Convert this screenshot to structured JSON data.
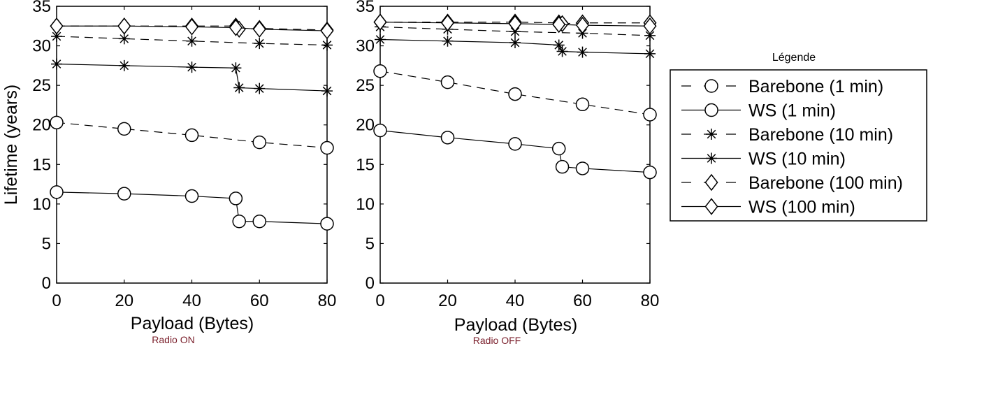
{
  "chart_data": [
    {
      "type": "line",
      "xlabel": "Payload (Bytes)",
      "ylabel": "Lifetime (years)",
      "caption": "Radio ON",
      "xlim": [
        0,
        80
      ],
      "ylim": [
        0,
        35
      ],
      "xticks": [
        "0",
        "20",
        "40",
        "60",
        "80"
      ],
      "yticks": [
        "0",
        "5",
        "10",
        "15",
        "20",
        "25",
        "30",
        "35"
      ],
      "grid": false,
      "series": [
        {
          "name": "Barebone (1 min)",
          "style": "dashed",
          "marker": "circle",
          "x": [
            0,
            20,
            40,
            60,
            80
          ],
          "y": [
            20.3,
            19.5,
            18.7,
            17.8,
            17.1
          ]
        },
        {
          "name": "WS (1 min)",
          "style": "solid",
          "marker": "circle",
          "x": [
            0,
            20,
            40,
            53,
            54,
            60,
            80
          ],
          "y": [
            11.5,
            11.3,
            11.0,
            10.7,
            7.8,
            7.8,
            7.5
          ]
        },
        {
          "name": "Barebone (10 min)",
          "style": "dashed",
          "marker": "asterisk",
          "x": [
            0,
            20,
            40,
            60,
            80
          ],
          "y": [
            31.2,
            30.9,
            30.6,
            30.3,
            30.1
          ]
        },
        {
          "name": "WS (10 min)",
          "style": "solid",
          "marker": "asterisk",
          "x": [
            0,
            20,
            40,
            53,
            54,
            60,
            80
          ],
          "y": [
            27.7,
            27.5,
            27.3,
            27.2,
            24.7,
            24.6,
            24.3
          ]
        },
        {
          "name": "Barebone (100 min)",
          "style": "dashed",
          "marker": "diamond",
          "x": [
            0,
            20,
            40,
            53,
            54,
            60,
            80
          ],
          "y": [
            32.5,
            32.5,
            32.5,
            32.5,
            32.1,
            32.2,
            32.0
          ]
        },
        {
          "name": "WS (100 min)",
          "style": "solid",
          "marker": "diamond",
          "x": [
            0,
            20,
            40,
            53,
            60,
            80
          ],
          "y": [
            32.5,
            32.5,
            32.4,
            32.3,
            32.1,
            31.9
          ]
        }
      ]
    },
    {
      "type": "line",
      "xlabel": "Payload (Bytes)",
      "ylabel": "",
      "caption": "Radio OFF",
      "xlim": [
        0,
        80
      ],
      "ylim": [
        0,
        35
      ],
      "xticks": [
        "0",
        "20",
        "40",
        "60",
        "80"
      ],
      "yticks": [
        "0",
        "5",
        "10",
        "15",
        "20",
        "25",
        "30",
        "35"
      ],
      "grid": false,
      "series": [
        {
          "name": "Barebone (1 min)",
          "style": "dashed",
          "marker": "circle",
          "x": [
            0,
            20,
            40,
            60,
            80
          ],
          "y": [
            26.8,
            25.4,
            23.9,
            22.6,
            21.3
          ]
        },
        {
          "name": "WS (1 min)",
          "style": "solid",
          "marker": "circle",
          "x": [
            0,
            20,
            40,
            53,
            54,
            60,
            80
          ],
          "y": [
            19.3,
            18.4,
            17.6,
            17.0,
            14.7,
            14.5,
            14.0
          ]
        },
        {
          "name": "Barebone (10 min)",
          "style": "dashed",
          "marker": "asterisk",
          "x": [
            0,
            20,
            40,
            60,
            80
          ],
          "y": [
            32.4,
            32.1,
            31.8,
            31.6,
            31.3
          ]
        },
        {
          "name": "WS (10 min)",
          "style": "solid",
          "marker": "asterisk",
          "x": [
            0,
            20,
            40,
            53,
            54,
            60,
            80
          ],
          "y": [
            30.8,
            30.6,
            30.4,
            30.1,
            29.3,
            29.2,
            29.0
          ]
        },
        {
          "name": "Barebone (100 min)",
          "style": "dashed",
          "marker": "diamond",
          "x": [
            0,
            20,
            40,
            53,
            54,
            60,
            80
          ],
          "y": [
            33.0,
            33.0,
            33.0,
            32.9,
            32.8,
            32.9,
            32.9
          ]
        },
        {
          "name": "WS (100 min)",
          "style": "solid",
          "marker": "diamond",
          "x": [
            0,
            20,
            40,
            53,
            60,
            80
          ],
          "y": [
            33.0,
            32.9,
            32.8,
            32.7,
            32.6,
            32.5
          ]
        }
      ]
    }
  ],
  "legend": {
    "title": "Légende",
    "placement": "right",
    "entries": [
      {
        "label": "Barebone (1 min)",
        "style": "dashed",
        "marker": "circle"
      },
      {
        "label": "WS (1 min)",
        "style": "solid",
        "marker": "circle"
      },
      {
        "label": "Barebone (10 min)",
        "style": "dashed",
        "marker": "asterisk"
      },
      {
        "label": "WS (10 min)",
        "style": "solid",
        "marker": "asterisk"
      },
      {
        "label": "Barebone (100 min)",
        "style": "dashed",
        "marker": "diamond"
      },
      {
        "label": "WS (100 min)",
        "style": "solid",
        "marker": "diamond"
      }
    ]
  }
}
